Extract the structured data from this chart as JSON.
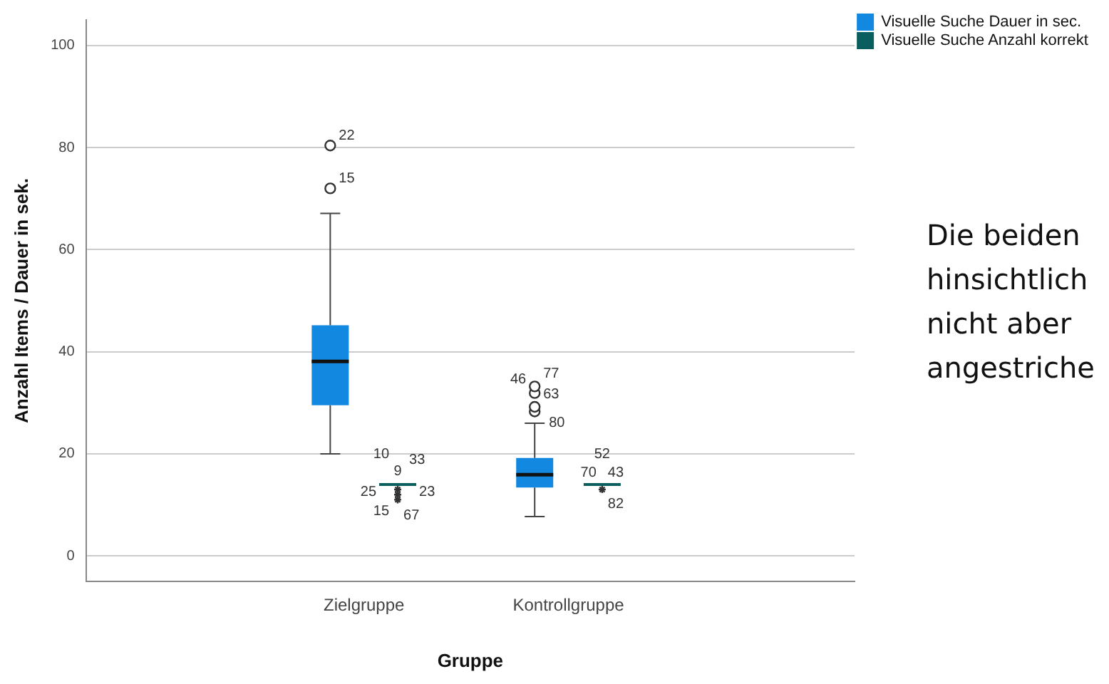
{
  "chart_data": {
    "type": "box",
    "xlabel": "Gruppe",
    "ylabel": "Anzahl Items / Dauer in sek.",
    "categories": [
      "Zielgruppe",
      "Kontrollgruppe"
    ],
    "ylim": [
      -5,
      105
    ],
    "yticks": [
      0,
      20,
      40,
      60,
      80,
      100
    ],
    "grid": "y",
    "legend": "top right",
    "series": [
      {
        "name": "Visuelle Suche Dauer in sec.",
        "color": "#1288e0",
        "marker": "circle",
        "boxes": [
          {
            "low": 20,
            "q1": 29.5,
            "median": 38.1,
            "q3": 45.2,
            "high": 67.1,
            "outliers": [
              72,
              80.4
            ]
          },
          {
            "low": 7.7,
            "q1": 13.4,
            "median": 15.9,
            "q3": 19.2,
            "high": 26,
            "outliers": [
              28.3,
              29.2,
              31.9,
              33.2
            ]
          }
        ]
      },
      {
        "name": "Visuelle Suche Anzahl korrekt",
        "color": "#0b5e5e",
        "marker": "star",
        "boxes": [
          {
            "low": 14,
            "q1": 14,
            "median": 14,
            "q3": 14,
            "high": 14,
            "outliers": [
              13,
              12,
              11
            ]
          },
          {
            "low": 14,
            "q1": 14,
            "median": 14,
            "q3": 14,
            "high": 14,
            "outliers": [
              13
            ]
          }
        ]
      }
    ],
    "annotations": [
      "22",
      "15",
      "33",
      "10",
      "9",
      "23",
      "25",
      "67",
      "15",
      "77",
      "46",
      "63",
      "80",
      "43",
      "70",
      "82",
      "52",
      "Die beiden hinsichtlich nicht aber angestriche"
    ]
  }
}
